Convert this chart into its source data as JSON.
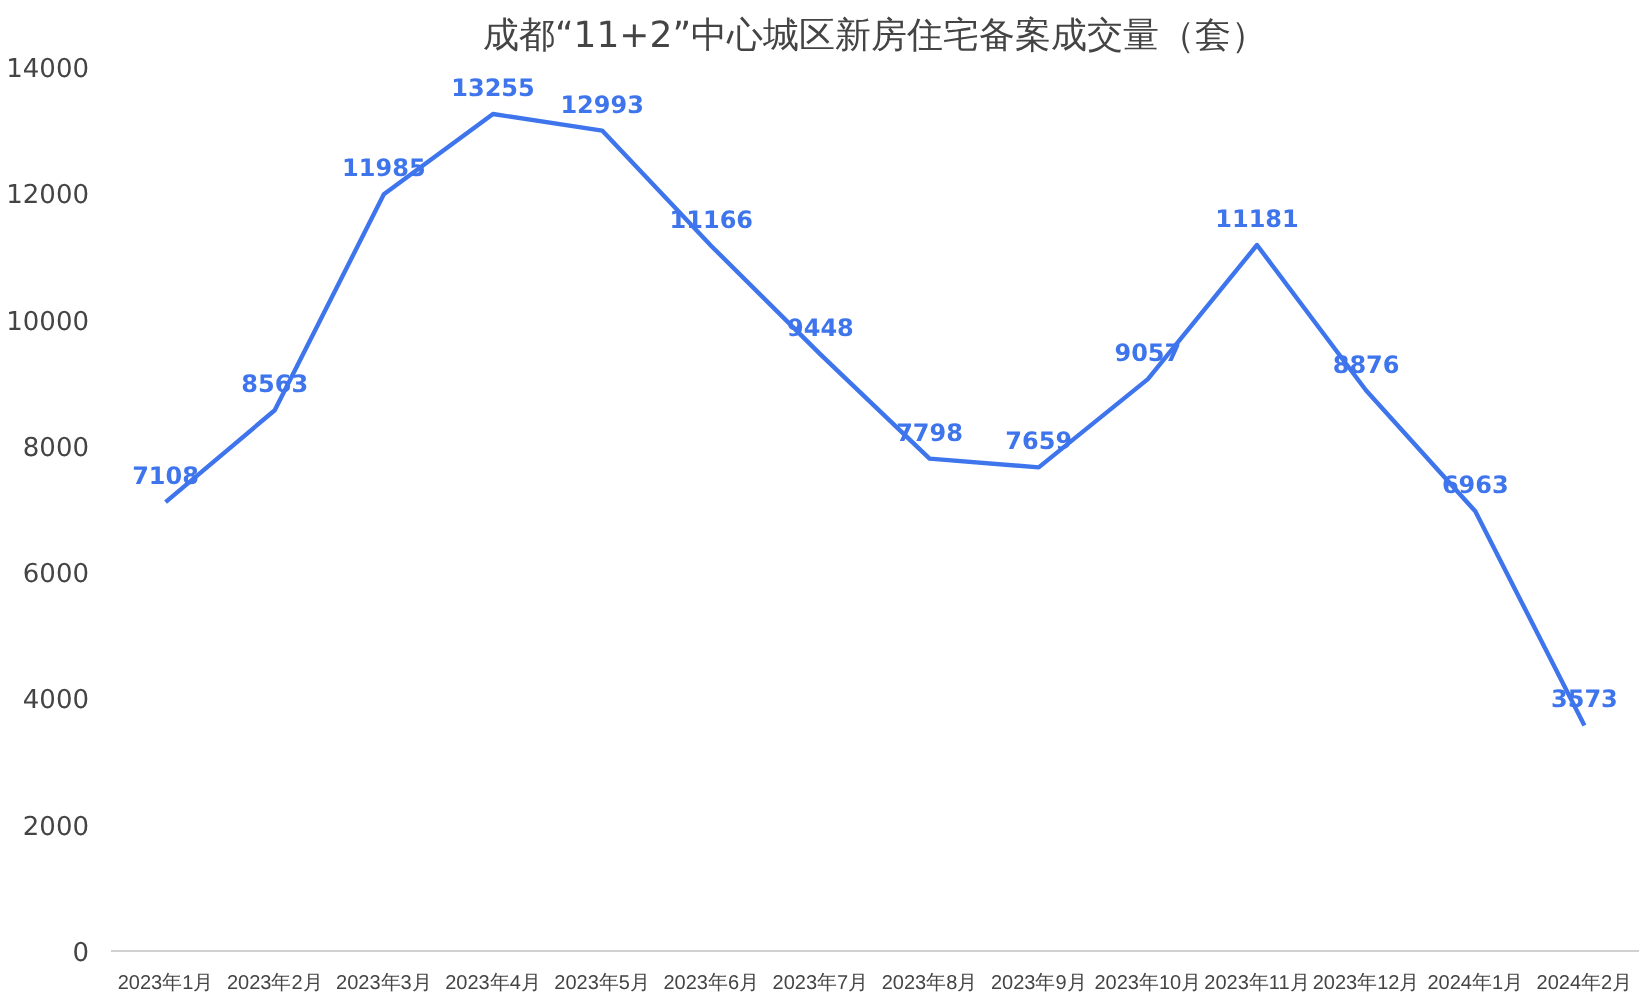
{
  "chart_data": {
    "type": "line",
    "title": "成都“11+2”中心城区新房住宅备案成交量（套）",
    "categories": [
      "2023年1月",
      "2023年2月",
      "2023年3月",
      "2023年4月",
      "2023年5月",
      "2023年6月",
      "2023年7月",
      "2023年8月",
      "2023年9月",
      "2023年10月",
      "2023年11月",
      "2023年12月",
      "2024年1月",
      "2024年2月"
    ],
    "series": [
      {
        "color": "#3e75ec",
        "values": [
          7108,
          8563,
          11985,
          13255,
          12993,
          11166,
          9448,
          7798,
          7659,
          9057,
          11181,
          8876,
          6963,
          3573
        ]
      }
    ],
    "ylim": [
      0,
      14000
    ],
    "yticks": [
      0,
      2000,
      4000,
      6000,
      8000,
      10000,
      12000,
      14000
    ],
    "data_labels": true,
    "grid": false,
    "marker": "none",
    "line_style": "solid"
  }
}
